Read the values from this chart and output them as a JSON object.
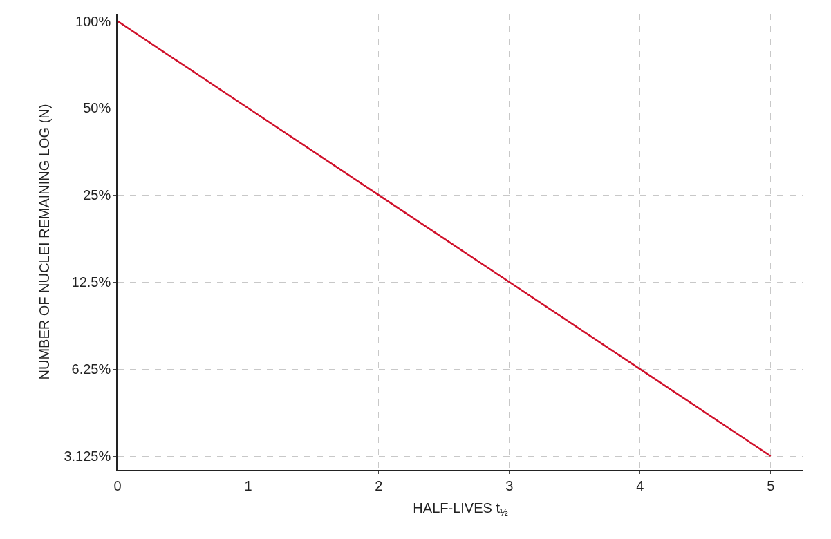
{
  "chart_data": {
    "type": "line",
    "xlabel": "HALF-LIVES t$_{½}$",
    "ylabel": "NUMBER OF NUCLEI REMAINING LOG (N)",
    "x": [
      0,
      1,
      2,
      3,
      4,
      5
    ],
    "series": [
      {
        "color": "#d0102a",
        "values": [
          100,
          50,
          25,
          12.5,
          6.25,
          3.125
        ]
      }
    ],
    "log": "y",
    "xlim": [
      0,
      5.25
    ],
    "ylim": [
      2.8,
      106
    ],
    "xticks": [
      0,
      1,
      2,
      3,
      4,
      5
    ],
    "yticks": [
      {
        "value": 100,
        "label": "100%"
      },
      {
        "value": 50,
        "label": "50%"
      },
      {
        "value": 25,
        "label": "25%"
      },
      {
        "value": 12.5,
        "label": "12.5%"
      },
      {
        "value": 6.25,
        "label": "6.25%"
      },
      {
        "value": 3.125,
        "label": "3.125%"
      }
    ],
    "grid": true,
    "marker": "none",
    "line_style": "solid"
  }
}
